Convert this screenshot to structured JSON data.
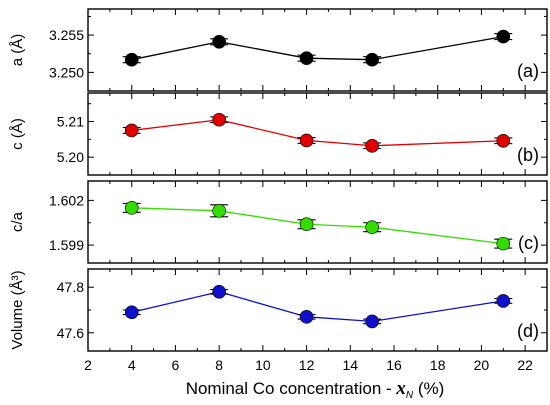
{
  "chart_data": [
    {
      "type": "line",
      "panel_label": "(a)",
      "ylabel": "a (Å)",
      "color": "#000000",
      "ylim": [
        3.2475,
        3.2585
      ],
      "yticks": [
        3.25,
        3.255
      ],
      "ytick_labels": [
        "3.250",
        "3.255"
      ],
      "x": [
        4,
        8,
        12,
        15,
        21
      ],
      "values": [
        3.2517,
        3.2541,
        3.2519,
        3.2517,
        3.2548
      ],
      "errors": [
        0.0004,
        0.0004,
        0.0004,
        0.0004,
        0.0004
      ]
    },
    {
      "type": "line",
      "panel_label": "(b)",
      "ylabel": "c (Å)",
      "color": "#e00000",
      "ylim": [
        5.195,
        5.218
      ],
      "yticks": [
        5.2,
        5.21
      ],
      "ytick_labels": [
        "5.20",
        "5.21"
      ],
      "x": [
        4,
        8,
        12,
        15,
        21
      ],
      "values": [
        5.2075,
        5.2105,
        5.2047,
        5.2032,
        5.2046
      ],
      "errors": [
        0.0008,
        0.0008,
        0.0008,
        0.0008,
        0.0008
      ]
    },
    {
      "type": "line",
      "panel_label": "(c)",
      "ylabel": "c/a",
      "color": "#33dd00",
      "ylim": [
        1.5978,
        1.6033
      ],
      "yticks": [
        1.599,
        1.602
      ],
      "ytick_labels": [
        "1.599",
        "1.602"
      ],
      "x": [
        4,
        8,
        12,
        15,
        21
      ],
      "values": [
        1.6015,
        1.6013,
        1.6004,
        1.6002,
        1.5991
      ],
      "errors": [
        0.0003,
        0.0004,
        0.0003,
        0.0003,
        0.0003
      ]
    },
    {
      "type": "line",
      "panel_label": "(d)",
      "ylabel": "Volume (Å³)",
      "color": "#1010cc",
      "ylim": [
        47.52,
        47.88
      ],
      "yticks": [
        47.6,
        47.8
      ],
      "ytick_labels": [
        "47.6",
        "47.8"
      ],
      "x": [
        4,
        8,
        12,
        15,
        21
      ],
      "values": [
        47.69,
        47.78,
        47.67,
        47.65,
        47.74
      ],
      "errors": [
        0.01,
        0.01,
        0.01,
        0.01,
        0.01
      ]
    }
  ],
  "x_axis": {
    "xlabel": "Nominal Co concentration - x_N (%)",
    "xlabel_main": "Nominal Co concentration - ",
    "xlabel_var": "x",
    "xlabel_sub": "N",
    "xlabel_unit": " (%)",
    "xlim": [
      2,
      23
    ],
    "ticks": [
      2,
      4,
      6,
      8,
      10,
      12,
      14,
      16,
      18,
      20,
      22
    ],
    "tick_labels": [
      "2",
      "4",
      "6",
      "8",
      "10",
      "12",
      "14",
      "16",
      "18",
      "20",
      "22"
    ]
  }
}
